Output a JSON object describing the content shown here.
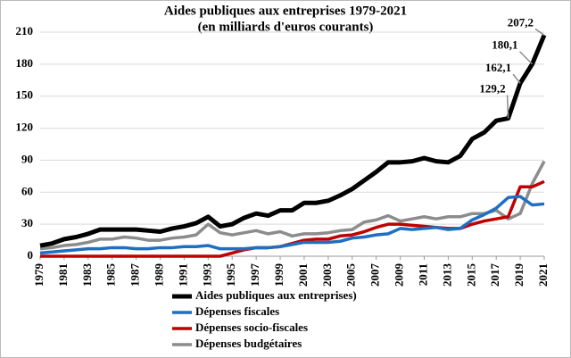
{
  "chart_data": {
    "type": "line",
    "title": "Aides publiques aux entreprises 1979-2021",
    "subtitle": "(en milliards d'euros courants)",
    "x": [
      1979,
      1980,
      1981,
      1982,
      1983,
      1984,
      1985,
      1986,
      1987,
      1988,
      1989,
      1990,
      1991,
      1992,
      1993,
      1994,
      1995,
      1996,
      1997,
      1998,
      1999,
      2000,
      2001,
      2002,
      2003,
      2004,
      2005,
      2006,
      2007,
      2008,
      2009,
      2010,
      2011,
      2012,
      2013,
      2014,
      2015,
      2016,
      2017,
      2018,
      2019,
      2020,
      2021
    ],
    "xlim": [
      1979,
      2021
    ],
    "xticks": [
      1979,
      1981,
      1983,
      1985,
      1987,
      1989,
      1991,
      1993,
      1995,
      1997,
      1999,
      2001,
      2003,
      2005,
      2007,
      2009,
      2011,
      2013,
      2015,
      2017,
      2019,
      2021
    ],
    "ylim": [
      0,
      210
    ],
    "yticks": [
      0,
      30,
      60,
      90,
      120,
      150,
      180,
      210
    ],
    "grid": true,
    "legend": "bottom",
    "series": [
      {
        "name": "Aides publiques aux entreprises)",
        "color": "#000000",
        "values": [
          10,
          12,
          16,
          18,
          21,
          25,
          25,
          25,
          25,
          24,
          23,
          26,
          28,
          31,
          37,
          28,
          30,
          36,
          40,
          38,
          43,
          43,
          50,
          50,
          52,
          57,
          63,
          71,
          79,
          88,
          88,
          89,
          92,
          89,
          88,
          94,
          110,
          116,
          127,
          129.2,
          162.1,
          180.1,
          207.2
        ],
        "value_labels": [
          null,
          null,
          null,
          null,
          null,
          null,
          null,
          null,
          null,
          null,
          null,
          null,
          null,
          null,
          null,
          null,
          null,
          null,
          null,
          null,
          null,
          null,
          null,
          null,
          null,
          null,
          null,
          null,
          null,
          null,
          null,
          null,
          null,
          null,
          null,
          null,
          null,
          null,
          null,
          "129,2",
          "162,1",
          "180,1",
          "207,2"
        ]
      },
      {
        "name": "Dépenses fiscales",
        "color": "#1f6fc0",
        "values": [
          3,
          4,
          5,
          6,
          7,
          7,
          8,
          8,
          7,
          7,
          8,
          8,
          9,
          9,
          10,
          7,
          7,
          7,
          8,
          8,
          9,
          11,
          13,
          13,
          13,
          14,
          17,
          18,
          20,
          21,
          26,
          25,
          26,
          27,
          25,
          26,
          34,
          39,
          45,
          55,
          56,
          48,
          49
        ]
      },
      {
        "name": "Dépenses socio-fiscales",
        "color": "#c00000",
        "values": [
          0,
          0,
          0,
          0,
          0,
          0,
          0,
          0,
          0,
          0,
          0,
          0,
          0,
          0,
          0,
          0,
          3,
          6,
          8,
          8,
          9,
          12,
          15,
          16,
          16,
          19,
          20,
          23,
          27,
          30,
          30,
          29,
          28,
          27,
          26,
          26,
          30,
          33,
          35,
          37,
          65,
          65,
          70
        ]
      },
      {
        "name": "Dépenses budgétaires",
        "color": "#8c8c8c",
        "values": [
          7,
          8,
          10,
          11,
          13,
          16,
          16,
          18,
          17,
          15,
          15,
          17,
          18,
          20,
          30,
          22,
          20,
          22,
          24,
          21,
          23,
          19,
          21,
          21,
          22,
          24,
          25,
          32,
          34,
          38,
          33,
          35,
          37,
          35,
          37,
          37,
          40,
          40,
          43,
          35,
          40,
          68,
          89
        ]
      }
    ]
  }
}
